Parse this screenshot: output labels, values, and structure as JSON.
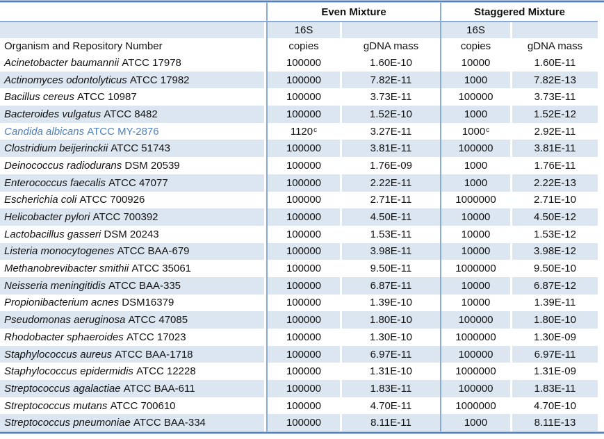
{
  "colors": {
    "stripe": "#dce6f1",
    "grid_line": "#87abd6",
    "band_dark": "#5181b8",
    "band_light": "#b9cce2",
    "highlight_text": "#4f81bd",
    "text": "#111111"
  },
  "table": {
    "group_headers": {
      "even": "Even Mixture",
      "staggered": "Staggered Mixture"
    },
    "column_headers": {
      "organism": "Organism and Repository Number",
      "s16": "16S",
      "copies": "copies",
      "gdna_mass": "gDNA mass"
    },
    "rows": [
      {
        "species": "Acinetobacter baumannii",
        "repository": "ATCC 17978",
        "even_copies": "100000",
        "even_sup": "",
        "even_gdna": "1.60E-10",
        "stag_copies": "10000",
        "stag_sup": "",
        "stag_gdna": "1.60E-11",
        "highlight": false
      },
      {
        "species": "Actinomyces odontolyticus",
        "repository": "ATCC 17982",
        "even_copies": "100000",
        "even_sup": "",
        "even_gdna": "7.82E-11",
        "stag_copies": "1000",
        "stag_sup": "",
        "stag_gdna": "7.82E-13",
        "highlight": false
      },
      {
        "species": "Bacillus cereus",
        "repository": "ATCC 10987",
        "even_copies": "100000",
        "even_sup": "",
        "even_gdna": "3.73E-11",
        "stag_copies": "100000",
        "stag_sup": "",
        "stag_gdna": "3.73E-11",
        "highlight": false
      },
      {
        "species": "Bacteroides vulgatus",
        "repository": "ATCC 8482",
        "even_copies": "100000",
        "even_sup": "",
        "even_gdna": "1.52E-10",
        "stag_copies": "1000",
        "stag_sup": "",
        "stag_gdna": "1.52E-12",
        "highlight": false
      },
      {
        "species": "Candida albicans",
        "repository": "ATCC MY-2876",
        "even_copies": "1120",
        "even_sup": "c",
        "even_gdna": "3.27E-11",
        "stag_copies": "1000",
        "stag_sup": "c",
        "stag_gdna": "2.92E-11",
        "highlight": true
      },
      {
        "species": "Clostridium beijerinckii",
        "repository": "ATCC 51743",
        "even_copies": "100000",
        "even_sup": "",
        "even_gdna": "3.81E-11",
        "stag_copies": "100000",
        "stag_sup": "",
        "stag_gdna": "3.81E-11",
        "highlight": false
      },
      {
        "species": "Deinococcus radiodurans",
        "repository": "DSM 20539",
        "even_copies": "100000",
        "even_sup": "",
        "even_gdna": "1.76E-09",
        "stag_copies": "1000",
        "stag_sup": "",
        "stag_gdna": "1.76E-11",
        "highlight": false
      },
      {
        "species": "Enterococcus faecalis",
        "repository": "ATCC 47077",
        "even_copies": "100000",
        "even_sup": "",
        "even_gdna": "2.22E-11",
        "stag_copies": "1000",
        "stag_sup": "",
        "stag_gdna": "2.22E-13",
        "highlight": false
      },
      {
        "species": "Escherichia coli",
        "repository": "ATCC 700926",
        "even_copies": "100000",
        "even_sup": "",
        "even_gdna": "2.71E-11",
        "stag_copies": "1000000",
        "stag_sup": "",
        "stag_gdna": "2.71E-10",
        "highlight": false
      },
      {
        "species": "Helicobacter pylori",
        "repository": "ATCC 700392",
        "even_copies": "100000",
        "even_sup": "",
        "even_gdna": "4.50E-11",
        "stag_copies": "10000",
        "stag_sup": "",
        "stag_gdna": "4.50E-12",
        "highlight": false
      },
      {
        "species": "Lactobacillus gasseri",
        "repository": "DSM 20243",
        "even_copies": "100000",
        "even_sup": "",
        "even_gdna": "1.53E-11",
        "stag_copies": "10000",
        "stag_sup": "",
        "stag_gdna": "1.53E-12",
        "highlight": false
      },
      {
        "species": "Listeria monocytogenes",
        "repository": "ATCC BAA-679",
        "even_copies": "100000",
        "even_sup": "",
        "even_gdna": "3.98E-11",
        "stag_copies": "10000",
        "stag_sup": "",
        "stag_gdna": "3.98E-12",
        "highlight": false
      },
      {
        "species": "Methanobrevibacter smithii",
        "repository": "ATCC 35061",
        "even_copies": "100000",
        "even_sup": "",
        "even_gdna": "9.50E-11",
        "stag_copies": "1000000",
        "stag_sup": "",
        "stag_gdna": "9.50E-10",
        "highlight": false
      },
      {
        "species": "Neisseria meningitidis",
        "repository": "ATCC BAA-335",
        "even_copies": "100000",
        "even_sup": "",
        "even_gdna": "6.87E-11",
        "stag_copies": "10000",
        "stag_sup": "",
        "stag_gdna": "6.87E-12",
        "highlight": false
      },
      {
        "species": "Propionibacterium acnes",
        "repository": "DSM16379",
        "even_copies": "100000",
        "even_sup": "",
        "even_gdna": "1.39E-10",
        "stag_copies": "10000",
        "stag_sup": "",
        "stag_gdna": "1.39E-11",
        "highlight": false
      },
      {
        "species": "Pseudomonas aeruginosa",
        "repository": "ATCC 47085",
        "even_copies": "100000",
        "even_sup": "",
        "even_gdna": "1.80E-10",
        "stag_copies": "100000",
        "stag_sup": "",
        "stag_gdna": "1.80E-10",
        "highlight": false
      },
      {
        "species": "Rhodobacter sphaeroides",
        "repository": "ATCC 17023",
        "even_copies": "100000",
        "even_sup": "",
        "even_gdna": "1.30E-10",
        "stag_copies": "1000000",
        "stag_sup": "",
        "stag_gdna": "1.30E-09",
        "highlight": false
      },
      {
        "species": "Staphylococcus aureus",
        "repository": "ATCC BAA-1718",
        "even_copies": "100000",
        "even_sup": "",
        "even_gdna": "6.97E-11",
        "stag_copies": "100000",
        "stag_sup": "",
        "stag_gdna": "6.97E-11",
        "highlight": false
      },
      {
        "species": "Staphylococcus epidermidis",
        "repository": "ATCC 12228",
        "even_copies": "100000",
        "even_sup": "",
        "even_gdna": "1.31E-10",
        "stag_copies": "1000000",
        "stag_sup": "",
        "stag_gdna": "1.31E-09",
        "highlight": false
      },
      {
        "species": "Streptococcus agalactiae",
        "repository": "ATCC BAA-611",
        "even_copies": "100000",
        "even_sup": "",
        "even_gdna": "1.83E-11",
        "stag_copies": "100000",
        "stag_sup": "",
        "stag_gdna": "1.83E-11",
        "highlight": false
      },
      {
        "species": "Streptococcus mutans",
        "repository": "ATCC 700610",
        "even_copies": "100000",
        "even_sup": "",
        "even_gdna": "4.70E-11",
        "stag_copies": "1000000",
        "stag_sup": "",
        "stag_gdna": "4.70E-10",
        "highlight": false
      },
      {
        "species": "Streptococcus pneumoniae",
        "repository": "ATCC BAA-334",
        "even_copies": "100000",
        "even_sup": "",
        "even_gdna": "8.11E-11",
        "stag_copies": "1000",
        "stag_sup": "",
        "stag_gdna": "8.11E-13",
        "highlight": false
      }
    ]
  }
}
